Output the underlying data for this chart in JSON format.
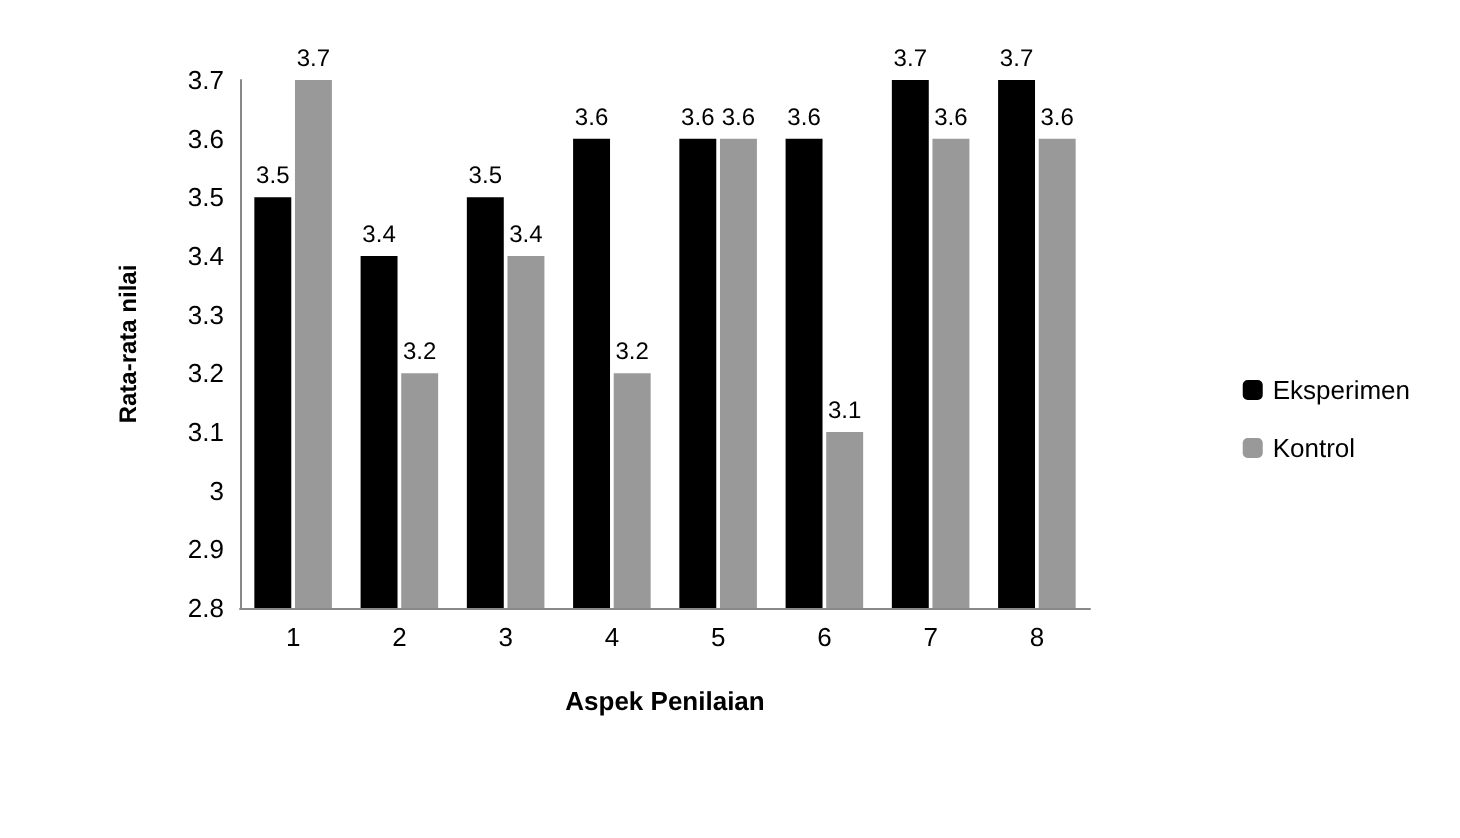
{
  "chart_data": {
    "type": "bar",
    "xlabel": "Aspek Penilaian",
    "ylabel": "Rata-rata nilai",
    "categories": [
      "1",
      "2",
      "3",
      "4",
      "5",
      "6",
      "7",
      "8"
    ],
    "series": [
      {
        "name": "Eksperimen",
        "color": "#000000",
        "values": [
          3.5,
          3.4,
          3.5,
          3.6,
          3.6,
          3.6,
          3.7,
          3.7
        ]
      },
      {
        "name": "Kontrol",
        "color": "#999999",
        "values": [
          3.7,
          3.2,
          3.4,
          3.2,
          3.6,
          3.1,
          3.6,
          3.6
        ]
      }
    ],
    "ylim": [
      2.8,
      3.7
    ],
    "yticks": [
      2.8,
      2.9,
      3,
      3.1,
      3.2,
      3.3,
      3.4,
      3.5,
      3.6,
      3.7
    ],
    "data_labels": true,
    "grid": false,
    "legend": "right"
  }
}
